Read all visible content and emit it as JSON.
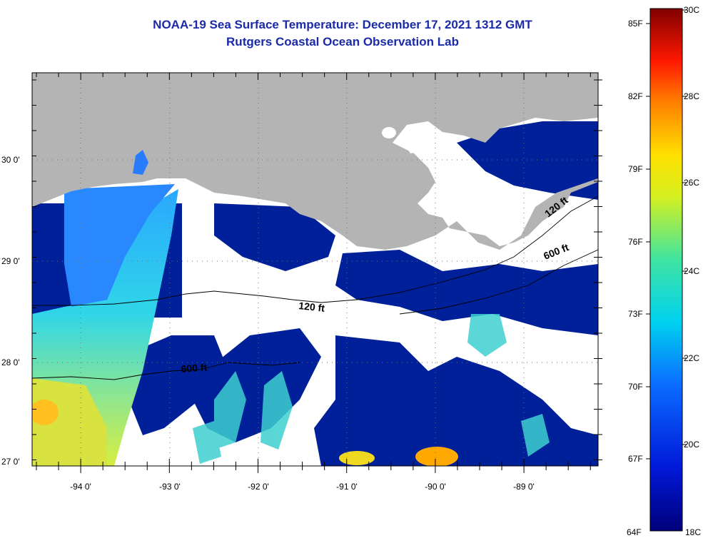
{
  "header": {
    "title": "NOAA-19 Sea Surface Temperature:  December 17, 2021 1312 GMT",
    "subtitle": "Rutgers Coastal Ocean Observation Lab"
  },
  "map": {
    "lat_labels": [
      "30 0'",
      "29 0'",
      "28 0'",
      "27 0'"
    ],
    "lon_labels": [
      "-94 0'",
      "-93 0'",
      "-92 0'",
      "-91 0'",
      "-90 0'",
      "-89 0'"
    ],
    "contour_labels": [
      "120 ft",
      "600 ft",
      "120 ft",
      "600 ft"
    ],
    "colors": {
      "land": "#b4b4b4",
      "cloud": "#ffffff",
      "cold_water": "#00209a"
    }
  },
  "colorbar": {
    "fahrenheit_labels": [
      "85F",
      "82F",
      "79F",
      "76F",
      "73F",
      "70F",
      "67F",
      "64F"
    ],
    "celsius_labels": [
      "30C",
      "28C",
      "26C",
      "24C",
      "22C",
      "20C",
      "18C"
    ]
  }
}
